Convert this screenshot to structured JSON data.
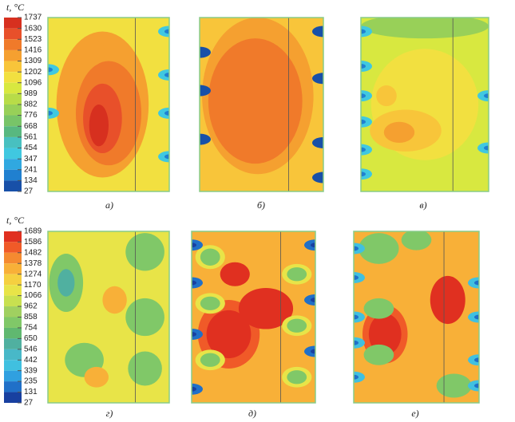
{
  "chart_data": [
    {
      "type": "contour",
      "colorbar_title": "t, °C",
      "colorbar_ticks": [
        1737,
        1630,
        1523,
        1416,
        1309,
        1202,
        1096,
        989,
        882,
        776,
        668,
        561,
        454,
        347,
        241,
        134,
        27
      ],
      "colors": [
        "#d7301f",
        "#e8502a",
        "#f07a2a",
        "#f5a030",
        "#f8c53a",
        "#f2e040",
        "#d8e840",
        "#b8dc48",
        "#98d058",
        "#78c468",
        "#58b880",
        "#48c0c0",
        "#40c8e0",
        "#30a8e0",
        "#2080d0",
        "#1850a8"
      ],
      "panel_labels": [
        "а)",
        "б)",
        "в)"
      ]
    },
    {
      "type": "contour",
      "colorbar_title": "t, °C",
      "colorbar_ticks": [
        1689,
        1586,
        1482,
        1378,
        1274,
        1170,
        1066,
        962,
        858,
        754,
        650,
        546,
        442,
        339,
        235,
        131,
        27
      ],
      "colors": [
        "#e03020",
        "#f05a28",
        "#f58a30",
        "#f8b038",
        "#f5d040",
        "#e8e448",
        "#c8e050",
        "#a0d060",
        "#80c868",
        "#60b870",
        "#50b0a0",
        "#48b8c8",
        "#40c0e0",
        "#30a0e0",
        "#2070c8",
        "#1840a0"
      ],
      "panel_labels": [
        "г)",
        "д)",
        "е)"
      ]
    }
  ]
}
